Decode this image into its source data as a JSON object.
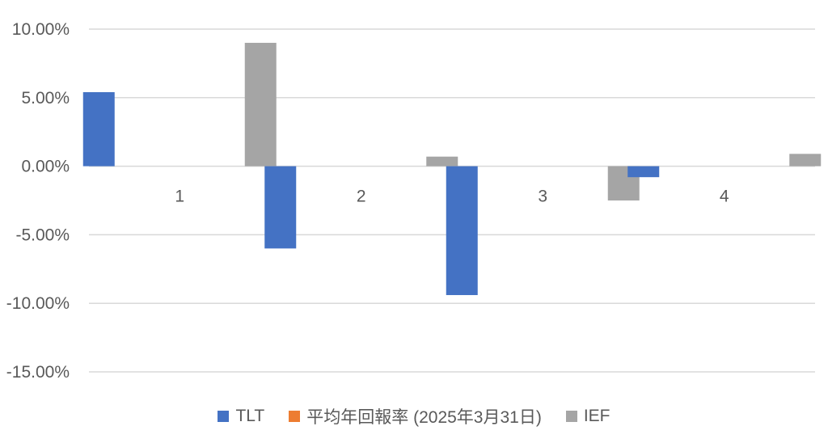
{
  "chart_data": {
    "type": "bar",
    "categories": [
      "1",
      "2",
      "3",
      "4"
    ],
    "series": [
      {
        "name": "TLT",
        "color": "#4472C4",
        "values": [
          5.4,
          -6.0,
          -9.4,
          -0.8
        ]
      },
      {
        "name": "平均年回報率 (2025年3月31日)",
        "color": "#ED7D31",
        "values": [
          0,
          0,
          0,
          0
        ]
      },
      {
        "name": "IEF",
        "color": "#A5A5A5",
        "values": [
          9.0,
          0.7,
          -2.5,
          0.9
        ]
      }
    ],
    "ylim": [
      -15,
      10
    ],
    "yticks": [
      10,
      5,
      0,
      -5,
      -10,
      -15
    ],
    "ytick_labels": [
      "10.00%",
      "5.00%",
      "0.00%",
      "-5.00%",
      "-10.00%",
      "-15.00%"
    ],
    "grid": true,
    "legend_position": "bottom",
    "title": "",
    "xlabel": "",
    "ylabel": ""
  }
}
